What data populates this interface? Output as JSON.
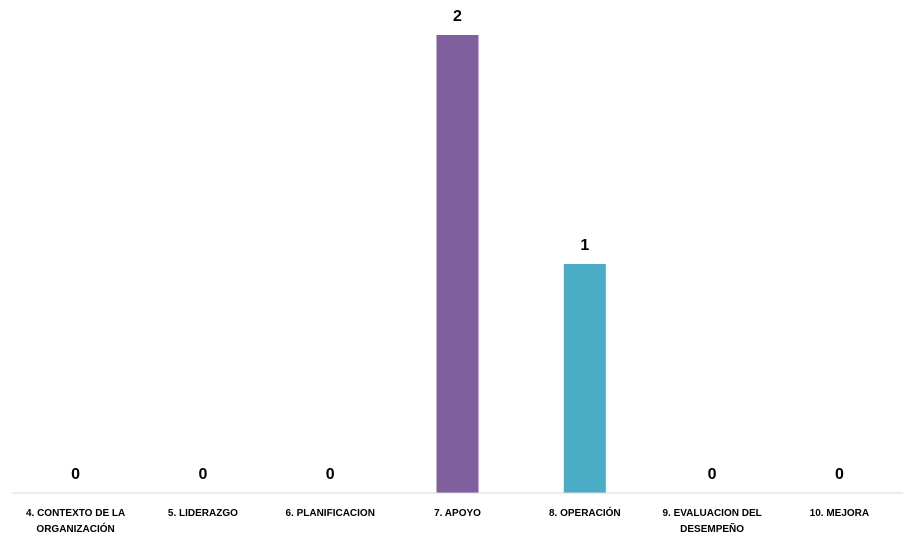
{
  "chart_data": {
    "type": "bar",
    "categories": [
      [
        "4. CONTEXTO DE LA",
        "ORGANIZACIÓN"
      ],
      [
        "5. LIDERAZGO"
      ],
      [
        "6. PLANIFICACION"
      ],
      [
        "7. APOYO"
      ],
      [
        "8. OPERACIÓN"
      ],
      [
        "9. EVALUACION DEL",
        "DESEMPEÑO"
      ],
      [
        "10. MEJORA"
      ]
    ],
    "values": [
      0,
      0,
      0,
      2,
      1,
      0,
      0
    ],
    "data_labels": [
      "0",
      "0",
      "0",
      "2",
      "1",
      "0",
      "0"
    ],
    "bar_colors": [
      "#7f5f9e",
      "#7f5f9e",
      "#7f5f9e",
      "#7f5f9e",
      "#4bacc6",
      "#7f5f9e",
      "#7f5f9e"
    ],
    "ylim": [
      0,
      2
    ],
    "grid": false,
    "legend": "none",
    "axis_color": "#d9d9d9"
  }
}
